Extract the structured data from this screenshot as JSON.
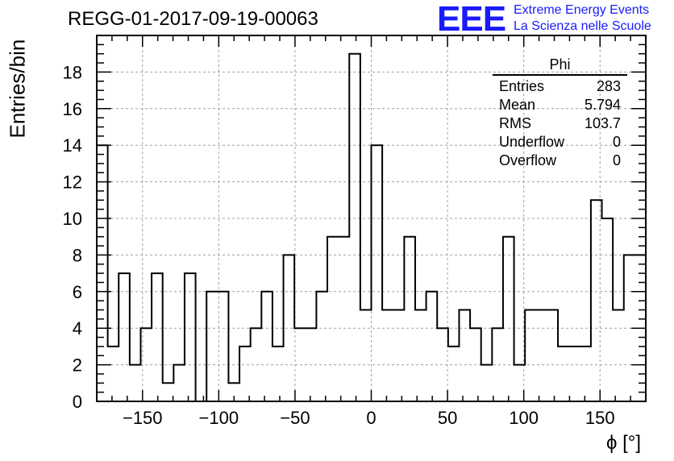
{
  "header": {
    "title": "REGG-01-2017-09-19-00063"
  },
  "logo": {
    "mark": "EEE",
    "line1": "Extreme Energy Events",
    "line2": "La Scienza nelle Scuole"
  },
  "stats": {
    "title": "Phi",
    "rows": [
      {
        "label": "Entries",
        "value": "283"
      },
      {
        "label": "Mean",
        "value": "5.794"
      },
      {
        "label": "RMS",
        "value": "103.7"
      },
      {
        "label": "Underflow",
        "value": "0"
      },
      {
        "label": "Overflow",
        "value": "0"
      }
    ]
  },
  "chart_data": {
    "type": "histogram",
    "title": "REGG-01-2017-09-19-00063",
    "xlabel": "ϕ [°]",
    "ylabel": "Entries/bin",
    "xlim": [
      -180,
      180
    ],
    "ylim": [
      0,
      20
    ],
    "x_ticks": [
      -150,
      -100,
      -50,
      0,
      50,
      100,
      150
    ],
    "x_tick_labels": [
      "−150",
      "−100",
      "−50",
      "0",
      "50",
      "100",
      "150"
    ],
    "y_ticks": [
      0,
      2,
      4,
      6,
      8,
      10,
      12,
      14,
      16,
      18
    ],
    "bin_width": 7.2,
    "counts": [
      14,
      3,
      7,
      2,
      4,
      7,
      1,
      2,
      7,
      0,
      6,
      6,
      1,
      3,
      4,
      6,
      3,
      8,
      4,
      4,
      6,
      9,
      9,
      19,
      5,
      14,
      5,
      5,
      9,
      5,
      6,
      4,
      3,
      5,
      4,
      2,
      4,
      9,
      2,
      5,
      5,
      5,
      3,
      3,
      3,
      11,
      10,
      5,
      8,
      8
    ],
    "grid": true,
    "color": "#000000"
  }
}
